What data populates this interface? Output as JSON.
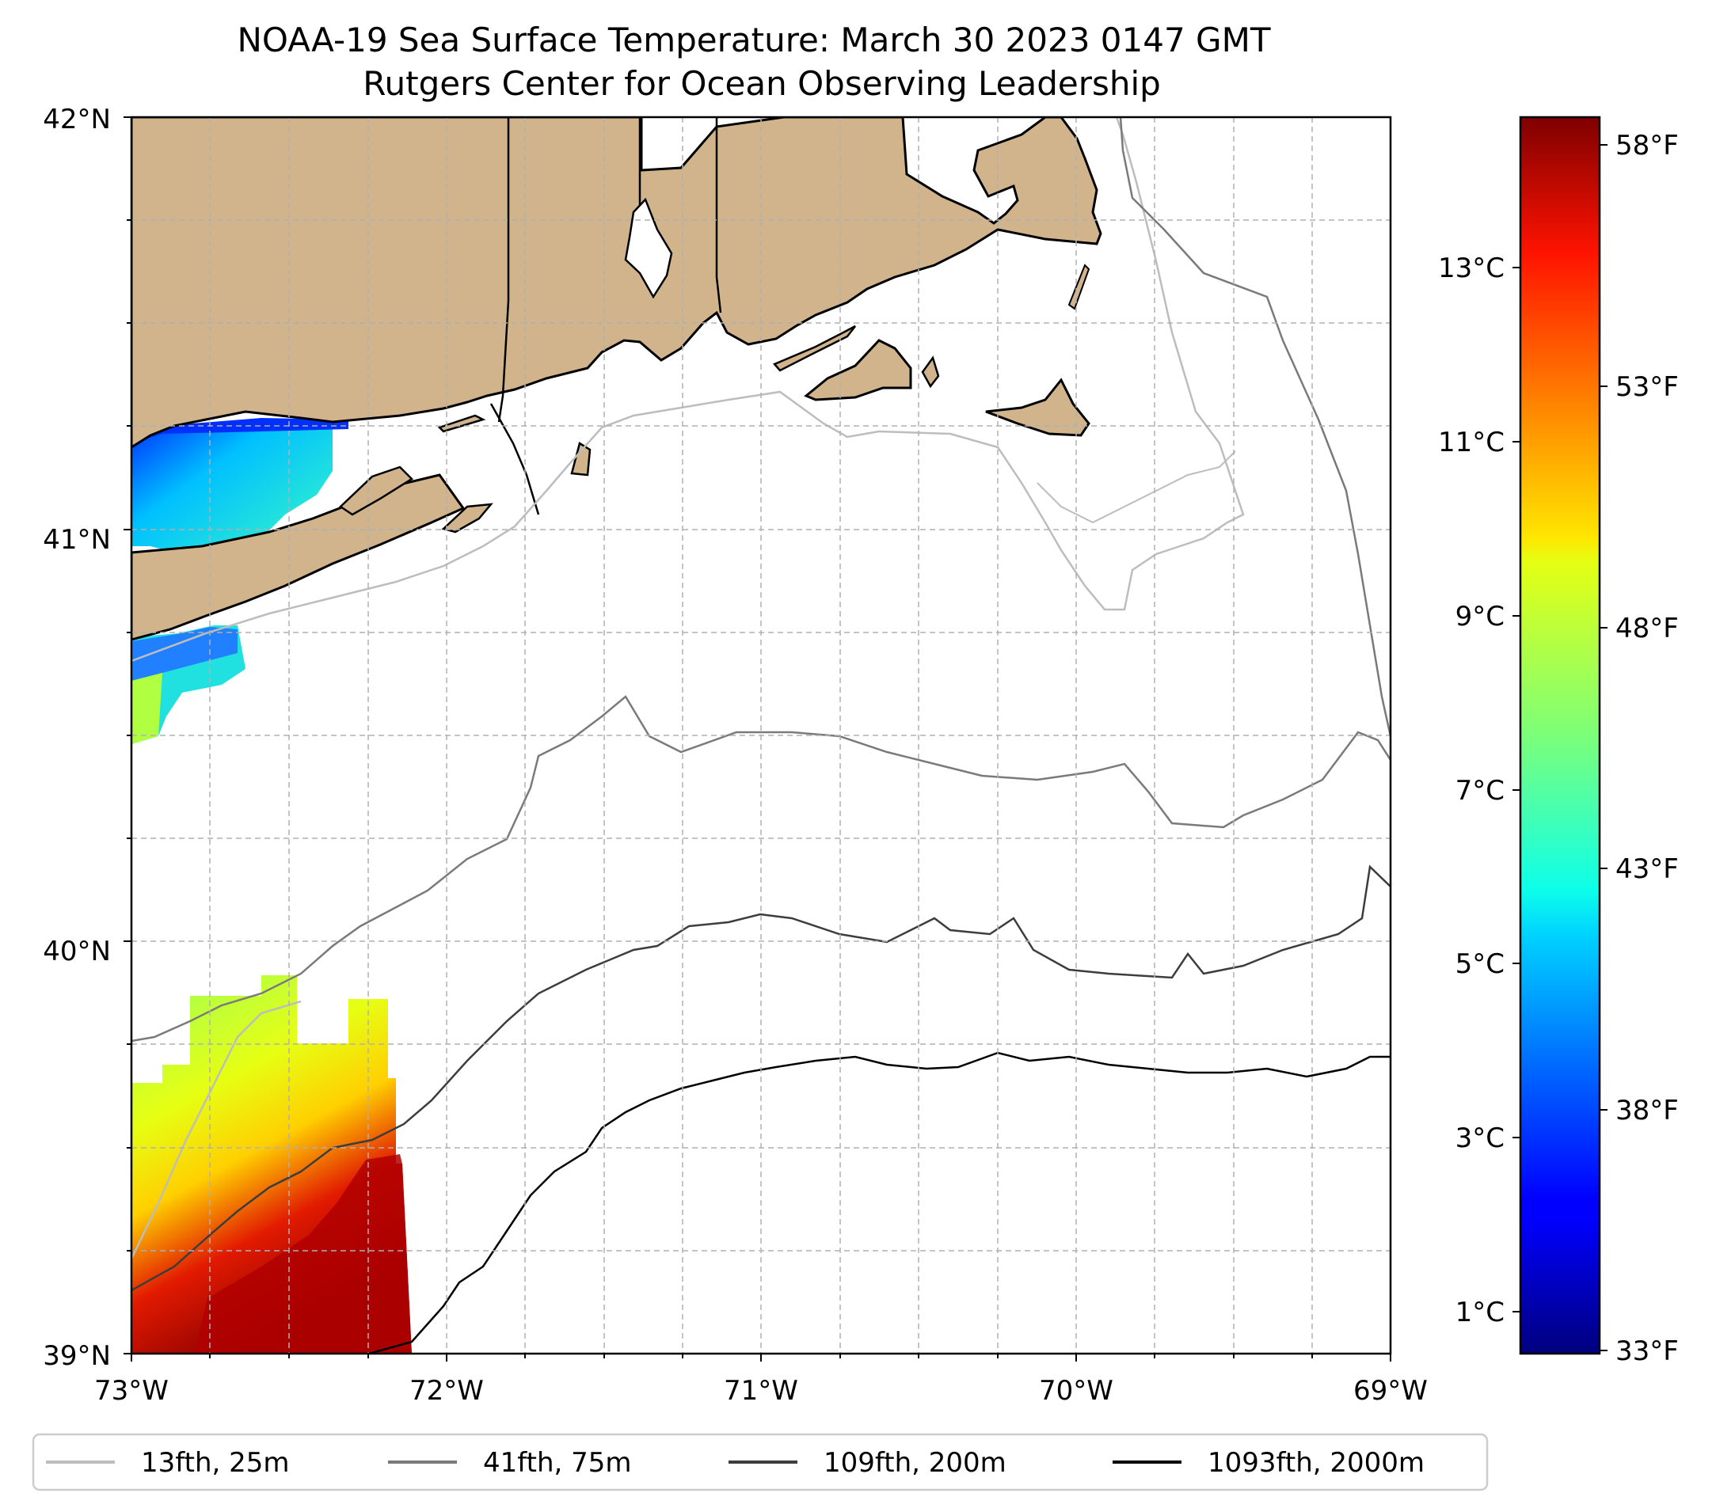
{
  "title": {
    "line1": "NOAA-19 Sea Surface Temperature: March 30 2023 0147 GMT",
    "line2": "Rutgers Center for Ocean Observing Leadership"
  },
  "axes": {
    "lat_labels": [
      "42°N",
      "41°N",
      "40°N",
      "39°N"
    ],
    "lon_labels": [
      "73°W",
      "72°W",
      "71°W",
      "70°W",
      "69°W"
    ]
  },
  "colorbar": {
    "celsius_labels": [
      "13°C",
      "11°C",
      "9°C",
      "7°C",
      "5°C",
      "3°C",
      "1°C"
    ],
    "fahrenheit_labels": [
      "58°F",
      "53°F",
      "48°F",
      "43°F",
      "38°F",
      "33°F"
    ]
  },
  "legend": [
    {
      "label": "13fth, 25m",
      "color": "#bdbdbd"
    },
    {
      "label": "41fth, 75m",
      "color": "#7a7a7a"
    },
    {
      "label": "109fth, 200m",
      "color": "#3d3d3d"
    },
    {
      "label": "1093fth, 2000m",
      "color": "#000000"
    }
  ],
  "colors": {
    "land": "#d2b48c",
    "ocean": "#ffffff",
    "grid": "#b0b0b0"
  }
}
